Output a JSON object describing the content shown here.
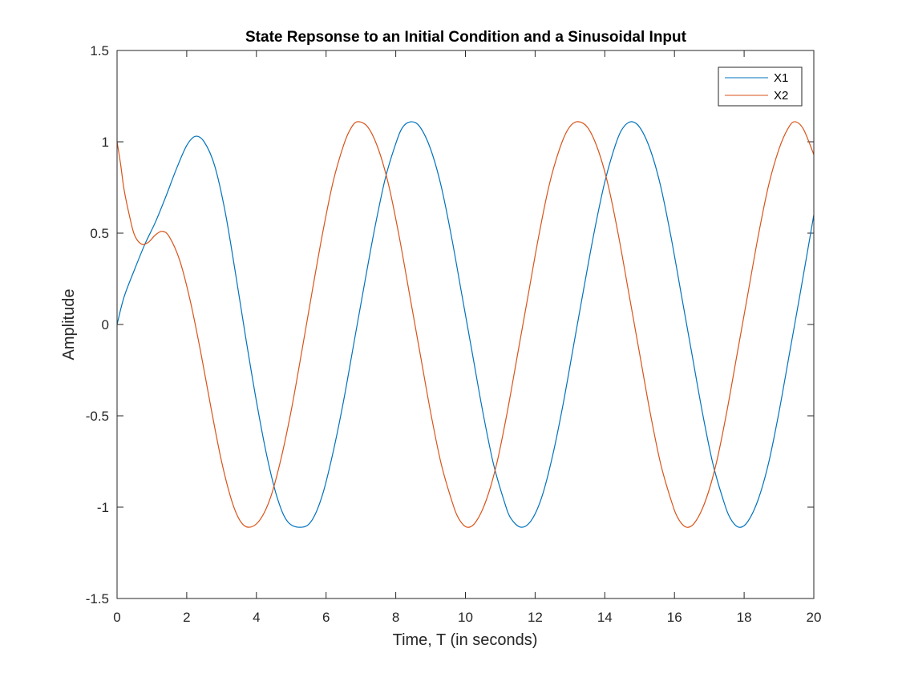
{
  "colors": {
    "x1": "#0072BD",
    "x2": "#D95319",
    "axis": "#262626",
    "background": "#ffffff"
  },
  "chart_data": {
    "type": "line",
    "title": "State Repsonse to an Initial Condition and a Sinusoidal Input",
    "xlabel": "Time, T (in seconds)",
    "ylabel": "Amplitude",
    "xlim": [
      0,
      20
    ],
    "ylim": [
      -1.5,
      1.5
    ],
    "xticks": [
      0,
      2,
      4,
      6,
      8,
      10,
      12,
      14,
      16,
      18,
      20
    ],
    "yticks": [
      -1.5,
      -1,
      -0.5,
      0,
      0.5,
      1,
      1.5
    ],
    "xtick_labels": [
      "0",
      "2",
      "4",
      "6",
      "8",
      "10",
      "12",
      "14",
      "16",
      "18",
      "20"
    ],
    "ytick_labels": [
      "-1.5",
      "-1",
      "-0.5",
      "0",
      "0.5",
      "1",
      "1.5"
    ],
    "grid": false,
    "legend": "top-right",
    "series": [
      {
        "name": "X1",
        "color": "#0072BD",
        "points": [
          [
            0,
            0
          ],
          [
            0.2,
            0.15
          ],
          [
            0.5,
            0.3
          ],
          [
            0.8,
            0.44
          ],
          [
            1.1,
            0.56
          ],
          [
            1.4,
            0.7
          ],
          [
            1.7,
            0.85
          ],
          [
            2.0,
            0.98
          ],
          [
            2.25,
            1.03
          ],
          [
            2.5,
            1.0
          ],
          [
            2.8,
            0.87
          ],
          [
            3.1,
            0.62
          ],
          [
            3.4,
            0.28
          ],
          [
            3.7,
            -0.08
          ],
          [
            4.0,
            -0.42
          ],
          [
            4.3,
            -0.72
          ],
          [
            4.6,
            -0.95
          ],
          [
            4.9,
            -1.08
          ],
          [
            5.3,
            -1.11
          ],
          [
            5.6,
            -1.07
          ],
          [
            5.9,
            -0.93
          ],
          [
            6.2,
            -0.7
          ],
          [
            6.5,
            -0.42
          ],
          [
            6.8,
            -0.1
          ],
          [
            7.1,
            0.22
          ],
          [
            7.4,
            0.53
          ],
          [
            7.7,
            0.8
          ],
          [
            8.0,
            0.99
          ],
          [
            8.2,
            1.08
          ],
          [
            8.45,
            1.11
          ],
          [
            8.7,
            1.08
          ],
          [
            9.0,
            0.96
          ],
          [
            9.3,
            0.76
          ],
          [
            9.6,
            0.48
          ],
          [
            9.9,
            0.16
          ],
          [
            10.2,
            -0.16
          ],
          [
            10.5,
            -0.48
          ],
          [
            10.8,
            -0.76
          ],
          [
            11.1,
            -0.96
          ],
          [
            11.3,
            -1.06
          ],
          [
            11.6,
            -1.11
          ],
          [
            11.9,
            -1.07
          ],
          [
            12.2,
            -0.94
          ],
          [
            12.5,
            -0.72
          ],
          [
            12.8,
            -0.44
          ],
          [
            13.1,
            -0.12
          ],
          [
            13.4,
            0.2
          ],
          [
            13.7,
            0.51
          ],
          [
            14.0,
            0.78
          ],
          [
            14.3,
            0.98
          ],
          [
            14.5,
            1.07
          ],
          [
            14.75,
            1.11
          ],
          [
            15.0,
            1.08
          ],
          [
            15.3,
            0.96
          ],
          [
            15.6,
            0.76
          ],
          [
            15.9,
            0.48
          ],
          [
            16.2,
            0.16
          ],
          [
            16.5,
            -0.16
          ],
          [
            16.8,
            -0.48
          ],
          [
            17.1,
            -0.76
          ],
          [
            17.4,
            -0.96
          ],
          [
            17.6,
            -1.06
          ],
          [
            17.85,
            -1.11
          ],
          [
            18.1,
            -1.08
          ],
          [
            18.4,
            -0.96
          ],
          [
            18.7,
            -0.76
          ],
          [
            19.0,
            -0.48
          ],
          [
            19.3,
            -0.16
          ],
          [
            19.6,
            0.16
          ],
          [
            20.0,
            0.6
          ]
        ]
      },
      {
        "name": "X2",
        "color": "#D95319",
        "points": [
          [
            0,
            1.0
          ],
          [
            0.1,
            0.88
          ],
          [
            0.2,
            0.74
          ],
          [
            0.35,
            0.6
          ],
          [
            0.5,
            0.49
          ],
          [
            0.7,
            0.44
          ],
          [
            0.9,
            0.45
          ],
          [
            1.1,
            0.49
          ],
          [
            1.3,
            0.51
          ],
          [
            1.5,
            0.48
          ],
          [
            1.8,
            0.35
          ],
          [
            2.1,
            0.13
          ],
          [
            2.4,
            -0.15
          ],
          [
            2.7,
            -0.46
          ],
          [
            3.0,
            -0.75
          ],
          [
            3.3,
            -0.97
          ],
          [
            3.55,
            -1.08
          ],
          [
            3.8,
            -1.11
          ],
          [
            4.1,
            -1.07
          ],
          [
            4.4,
            -0.95
          ],
          [
            4.7,
            -0.74
          ],
          [
            5.0,
            -0.47
          ],
          [
            5.3,
            -0.15
          ],
          [
            5.6,
            0.18
          ],
          [
            5.9,
            0.5
          ],
          [
            6.2,
            0.78
          ],
          [
            6.5,
            0.98
          ],
          [
            6.7,
            1.07
          ],
          [
            6.9,
            1.11
          ],
          [
            7.2,
            1.08
          ],
          [
            7.5,
            0.96
          ],
          [
            7.8,
            0.76
          ],
          [
            8.1,
            0.48
          ],
          [
            8.4,
            0.16
          ],
          [
            8.7,
            -0.16
          ],
          [
            9.0,
            -0.48
          ],
          [
            9.3,
            -0.76
          ],
          [
            9.6,
            -0.96
          ],
          [
            9.8,
            -1.06
          ],
          [
            10.05,
            -1.11
          ],
          [
            10.3,
            -1.08
          ],
          [
            10.6,
            -0.96
          ],
          [
            10.9,
            -0.76
          ],
          [
            11.2,
            -0.48
          ],
          [
            11.5,
            -0.16
          ],
          [
            11.8,
            0.16
          ],
          [
            12.1,
            0.48
          ],
          [
            12.4,
            0.76
          ],
          [
            12.7,
            0.96
          ],
          [
            12.95,
            1.07
          ],
          [
            13.2,
            1.11
          ],
          [
            13.5,
            1.08
          ],
          [
            13.8,
            0.96
          ],
          [
            14.1,
            0.76
          ],
          [
            14.4,
            0.48
          ],
          [
            14.7,
            0.16
          ],
          [
            15.0,
            -0.16
          ],
          [
            15.3,
            -0.48
          ],
          [
            15.6,
            -0.76
          ],
          [
            15.9,
            -0.96
          ],
          [
            16.1,
            -1.06
          ],
          [
            16.35,
            -1.11
          ],
          [
            16.6,
            -1.08
          ],
          [
            16.9,
            -0.96
          ],
          [
            17.2,
            -0.76
          ],
          [
            17.5,
            -0.48
          ],
          [
            17.8,
            -0.16
          ],
          [
            18.1,
            0.16
          ],
          [
            18.4,
            0.48
          ],
          [
            18.7,
            0.76
          ],
          [
            19.0,
            0.96
          ],
          [
            19.25,
            1.07
          ],
          [
            19.45,
            1.11
          ],
          [
            19.7,
            1.07
          ],
          [
            20.0,
            0.93
          ]
        ]
      }
    ]
  }
}
